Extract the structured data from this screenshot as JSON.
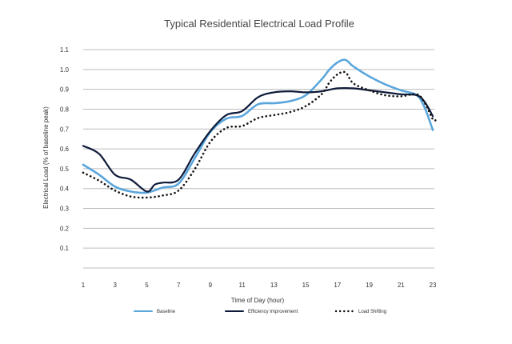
{
  "chart_data": {
    "type": "line",
    "title": "Typical Residential Electrical Load Profile",
    "xlabel": "Time of Day (hour)",
    "ylabel": "Electrical Load (% of baseline peak)",
    "x_ticks": [
      1,
      3,
      5,
      7,
      9,
      11,
      13,
      15,
      17,
      19,
      21,
      23
    ],
    "y_ticks": [
      {
        "value": 0.1,
        "label": "0.1"
      },
      {
        "value": 0.2,
        "label": "0.2"
      },
      {
        "value": 0.3,
        "label": "0.3"
      },
      {
        "value": 0.4,
        "label": "0.4"
      },
      {
        "value": 0.5,
        "label": "0.5"
      },
      {
        "value": 0.6,
        "label": "0.6"
      },
      {
        "value": 0.7,
        "label": "0.7"
      },
      {
        "value": 0.8,
        "label": "0.8"
      },
      {
        "value": 0.9,
        "label": "0.9"
      },
      {
        "value": 1.0,
        "label": "1.0"
      },
      {
        "value": 1.1,
        "label": "1.1"
      }
    ],
    "xlim": [
      1,
      23
    ],
    "ylim": [
      0,
      1.1
    ],
    "grid": "horizontal",
    "legend_position": "bottom",
    "series": [
      {
        "name": "Baseline",
        "color": "#5aa6dc",
        "style": "solid",
        "points": [
          [
            1,
            0.52
          ],
          [
            2,
            0.47
          ],
          [
            3,
            0.41
          ],
          [
            4,
            0.385
          ],
          [
            5,
            0.38
          ],
          [
            6,
            0.405
          ],
          [
            7,
            0.425
          ],
          [
            8,
            0.55
          ],
          [
            9,
            0.685
          ],
          [
            10,
            0.752
          ],
          [
            11,
            0.766
          ],
          [
            12,
            0.825
          ],
          [
            13,
            0.83
          ],
          [
            14,
            0.84
          ],
          [
            15,
            0.87
          ],
          [
            16,
            0.95
          ],
          [
            16.5,
            1.0
          ],
          [
            17,
            1.035
          ],
          [
            17.5,
            1.048
          ],
          [
            18,
            1.015
          ],
          [
            19,
            0.965
          ],
          [
            20,
            0.925
          ],
          [
            21,
            0.895
          ],
          [
            22,
            0.87
          ],
          [
            22.5,
            0.805
          ],
          [
            23,
            0.695
          ]
        ]
      },
      {
        "name": "Efficiency Improvement",
        "color": "#0e1a3a",
        "style": "solid",
        "points": [
          [
            1,
            0.615
          ],
          [
            2,
            0.575
          ],
          [
            3,
            0.47
          ],
          [
            4,
            0.445
          ],
          [
            5,
            0.385
          ],
          [
            5.5,
            0.42
          ],
          [
            6,
            0.43
          ],
          [
            7,
            0.445
          ],
          [
            8,
            0.575
          ],
          [
            9,
            0.69
          ],
          [
            10,
            0.77
          ],
          [
            11,
            0.79
          ],
          [
            12,
            0.86
          ],
          [
            13,
            0.885
          ],
          [
            14,
            0.89
          ],
          [
            15,
            0.885
          ],
          [
            16,
            0.89
          ],
          [
            17,
            0.905
          ],
          [
            18,
            0.905
          ],
          [
            19,
            0.895
          ],
          [
            20,
            0.885
          ],
          [
            21,
            0.875
          ],
          [
            22,
            0.87
          ],
          [
            22.5,
            0.835
          ],
          [
            23,
            0.765
          ]
        ]
      },
      {
        "name": "Load Shifting",
        "color": "#111111",
        "style": "dotted",
        "points": [
          [
            1,
            0.48
          ],
          [
            2,
            0.44
          ],
          [
            3,
            0.39
          ],
          [
            4,
            0.36
          ],
          [
            5,
            0.355
          ],
          [
            6,
            0.365
          ],
          [
            7,
            0.39
          ],
          [
            8,
            0.495
          ],
          [
            9,
            0.635
          ],
          [
            10,
            0.705
          ],
          [
            11,
            0.715
          ],
          [
            12,
            0.755
          ],
          [
            13,
            0.77
          ],
          [
            14,
            0.785
          ],
          [
            15,
            0.815
          ],
          [
            16,
            0.875
          ],
          [
            16.5,
            0.935
          ],
          [
            17,
            0.975
          ],
          [
            17.5,
            0.985
          ],
          [
            18,
            0.93
          ],
          [
            19,
            0.895
          ],
          [
            20,
            0.87
          ],
          [
            21,
            0.865
          ],
          [
            22,
            0.875
          ],
          [
            22.5,
            0.83
          ],
          [
            23,
            0.75
          ],
          [
            23.2,
            0.745
          ]
        ]
      }
    ]
  }
}
